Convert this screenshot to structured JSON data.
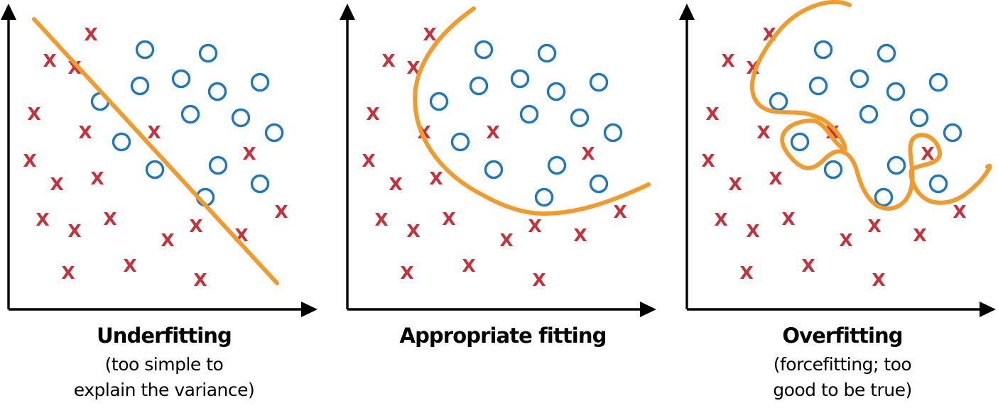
{
  "marker_colors": {
    "x_class": "#c8303a",
    "circle_class": "#1f78bf",
    "fit_curve": "#f39a2d",
    "axes": "#000000"
  },
  "marker_glyph": "X",
  "panels": [
    {
      "title": "Underfitting",
      "caption_lines": [
        "(too simple to",
        "explain the variance)"
      ]
    },
    {
      "title": "Appropriate fitting",
      "caption_lines": []
    },
    {
      "title": "Overfitting",
      "caption_lines": [
        "(forcefitting; too",
        "good to be true)"
      ]
    }
  ]
}
